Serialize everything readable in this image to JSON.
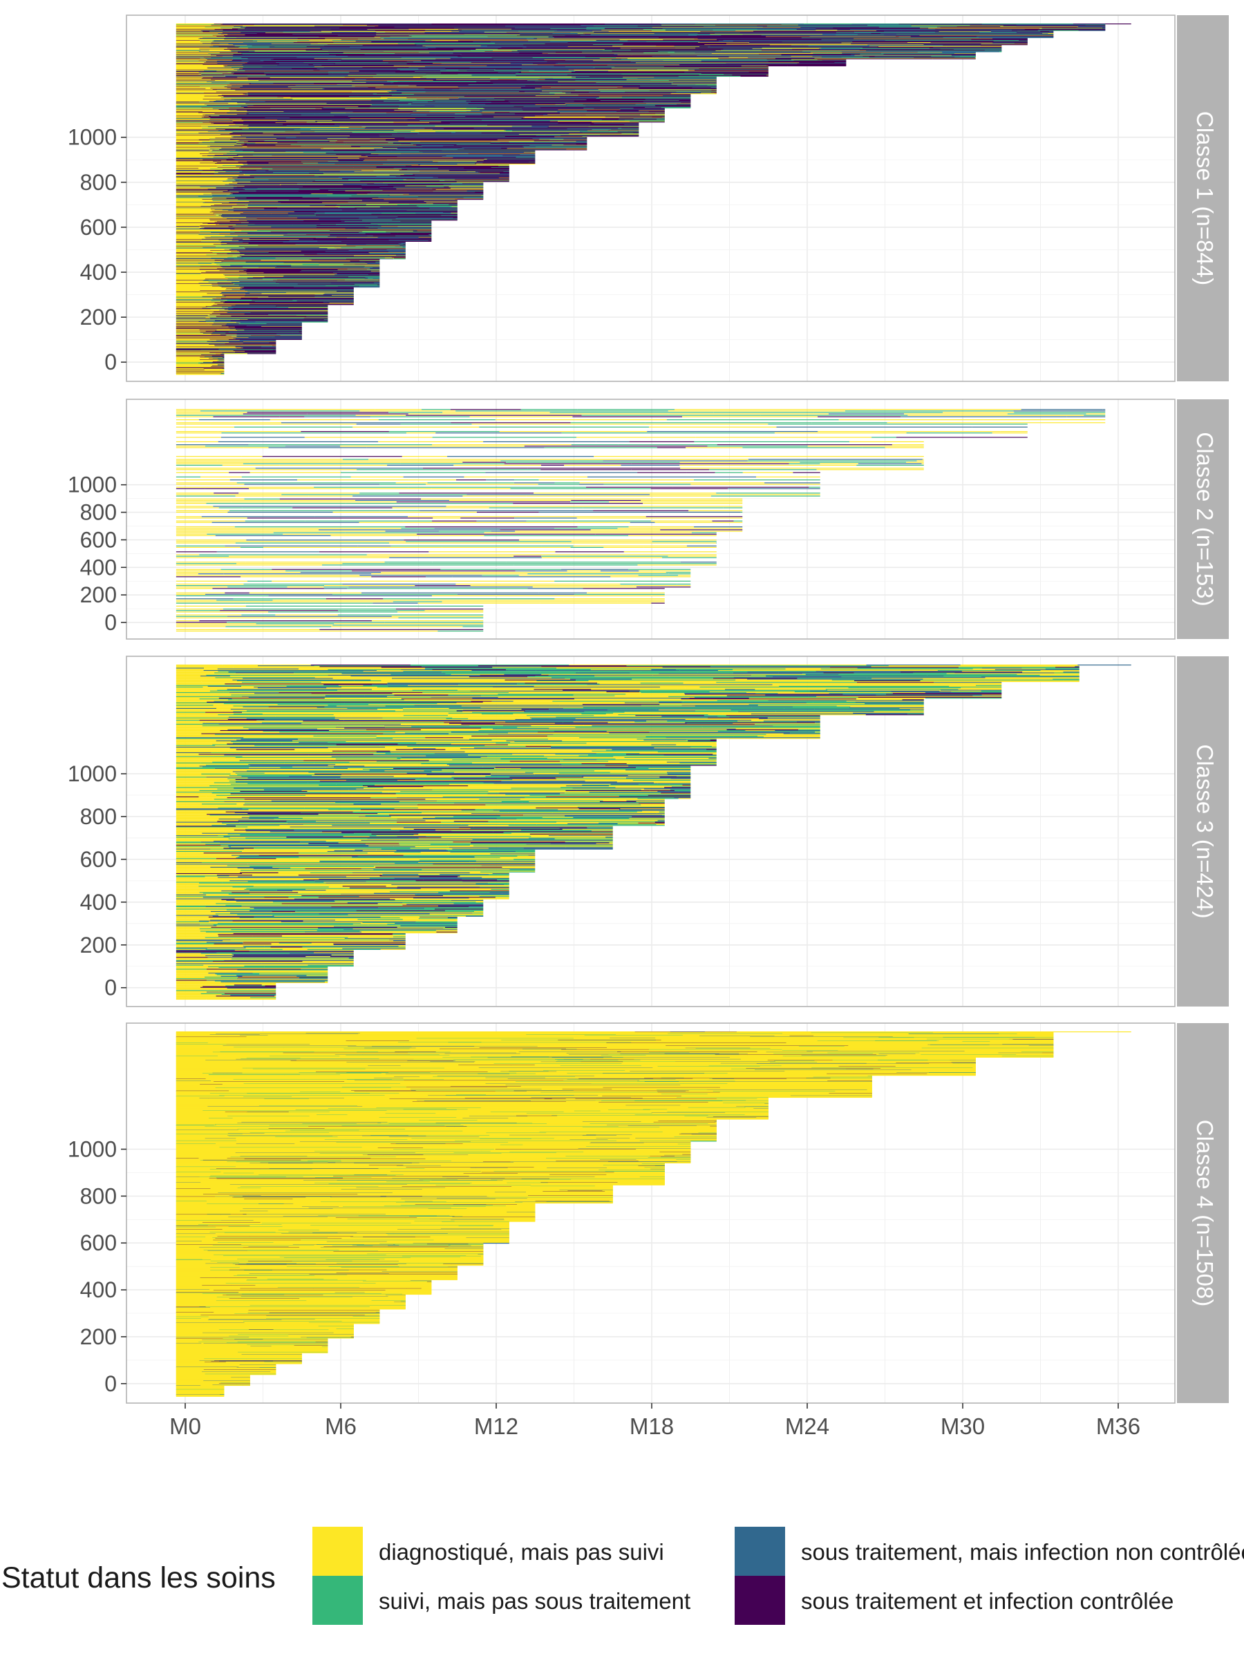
{
  "chart_data": {
    "type": "bar",
    "subtype": "faceted horizontal sequence (state) plot",
    "x_ticks": [
      "M0",
      "M6",
      "M12",
      "M18",
      "M24",
      "M30",
      "M36"
    ],
    "x_tick_months": [
      0,
      6,
      12,
      18,
      24,
      30,
      36
    ],
    "y_ticks": [
      0,
      200,
      400,
      600,
      800,
      1000
    ],
    "grid": true,
    "legend_position": "bottom",
    "legend": {
      "title": "Statut dans les soins",
      "entries": [
        {
          "label": "diagnostiqué, mais pas suivi",
          "color": "#FDE725"
        },
        {
          "label": "suivi, mais pas sous traitement",
          "color": "#35B779"
        },
        {
          "label": "sous traitement, mais infection non contrôlée",
          "color": "#31688E"
        },
        {
          "label": "sous traitement et infection contrôlée",
          "color": "#440154"
        }
      ]
    },
    "panels": [
      {
        "label": "Classe 1 (n=844)",
        "n": 844,
        "ylim": [
          -30,
          1420
        ],
        "tail_months": [
          [
            0,
            1
          ],
          [
            0.06,
            3
          ],
          [
            0.1,
            4
          ],
          [
            0.15,
            5
          ],
          [
            0.2,
            6
          ],
          [
            0.25,
            7
          ],
          [
            0.33,
            8
          ],
          [
            0.38,
            9
          ],
          [
            0.44,
            10
          ],
          [
            0.5,
            11
          ],
          [
            0.55,
            12
          ],
          [
            0.6,
            13
          ],
          [
            0.64,
            15
          ],
          [
            0.68,
            17
          ],
          [
            0.72,
            18
          ],
          [
            0.76,
            19
          ],
          [
            0.8,
            20
          ],
          [
            0.85,
            22
          ],
          [
            0.88,
            25
          ],
          [
            0.9,
            30
          ],
          [
            0.92,
            31
          ],
          [
            0.94,
            32
          ],
          [
            0.96,
            33
          ],
          [
            0.98,
            35
          ],
          [
            1,
            36
          ]
        ],
        "mix": [
          0.12,
          0.13,
          0.25,
          0.5
        ]
      },
      {
        "label": "Classe 2 (n=153)",
        "n": 153,
        "ylim": [
          -30,
          1420
        ],
        "tail_months": [
          [
            0,
            11
          ],
          [
            0.12,
            18
          ],
          [
            0.2,
            19
          ],
          [
            0.3,
            20
          ],
          [
            0.45,
            21
          ],
          [
            0.6,
            24
          ],
          [
            0.72,
            28
          ],
          [
            0.85,
            32
          ],
          [
            0.93,
            35
          ],
          [
            1,
            36
          ]
        ],
        "mix": [
          0.42,
          0.3,
          0.16,
          0.12
        ]
      },
      {
        "label": "Classe 3 (n=424)",
        "n": 424,
        "ylim": [
          -30,
          1420
        ],
        "tail_months": [
          [
            0,
            3
          ],
          [
            0.05,
            5
          ],
          [
            0.1,
            6
          ],
          [
            0.15,
            8
          ],
          [
            0.2,
            10
          ],
          [
            0.25,
            11
          ],
          [
            0.3,
            12
          ],
          [
            0.38,
            13
          ],
          [
            0.45,
            16
          ],
          [
            0.52,
            18
          ],
          [
            0.6,
            19
          ],
          [
            0.7,
            20
          ],
          [
            0.78,
            24
          ],
          [
            0.85,
            28
          ],
          [
            0.9,
            31
          ],
          [
            0.95,
            34
          ],
          [
            1,
            36
          ]
        ],
        "mix": [
          0.42,
          0.28,
          0.2,
          0.1
        ]
      },
      {
        "label": "Classe 4 (n=1508)",
        "n": 1508,
        "ylim": [
          -30,
          1420
        ],
        "tail_months": [
          [
            0,
            1
          ],
          [
            0.03,
            2
          ],
          [
            0.06,
            3
          ],
          [
            0.09,
            4
          ],
          [
            0.12,
            5
          ],
          [
            0.16,
            6
          ],
          [
            0.2,
            7
          ],
          [
            0.24,
            8
          ],
          [
            0.28,
            9
          ],
          [
            0.32,
            10
          ],
          [
            0.36,
            11
          ],
          [
            0.42,
            12
          ],
          [
            0.48,
            13
          ],
          [
            0.53,
            16
          ],
          [
            0.58,
            18
          ],
          [
            0.64,
            19
          ],
          [
            0.7,
            20
          ],
          [
            0.76,
            22
          ],
          [
            0.82,
            26
          ],
          [
            0.88,
            30
          ],
          [
            0.93,
            33
          ],
          [
            1,
            36
          ]
        ],
        "mix": [
          0.9,
          0.05,
          0.03,
          0.02
        ]
      }
    ]
  }
}
